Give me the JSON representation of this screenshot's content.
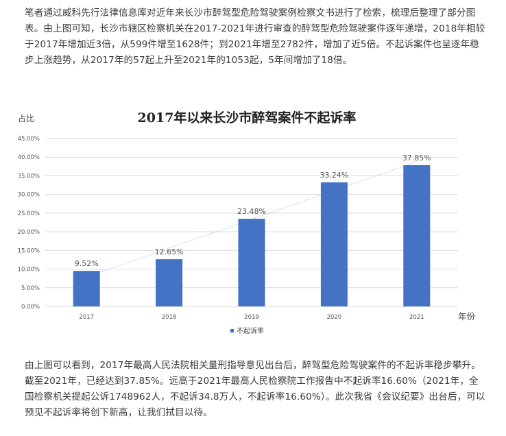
{
  "paragraphs": {
    "intro": "笔者通过威科先行法律信息库对近年来长沙市醉驾型危险驾驶案例检察文书进行了检索，梳理后整理了部分图表。由上图可知，长沙市辖区检察机关在2017-2021年进行审查的醉驾型危险驾驶案件逐年递增，2018年相较于2017年增加近3倍，从599件增至1628件；到2021年增至2782件，增加了近5倍。不起诉案件也呈逐年稳步上涨趋势，从2017年的57起上升至2021年的1053起，5年间增加了18倍。",
    "conclusion": "由上图可以看到，2017年最高人民法院相关量刑指导意见出台后，醉驾型危险驾驶案件的不起诉率稳步攀升。截至2021年，已经达到37.85%。远高于2021年最高人民检察院工作报告中不起诉率16.60%（2021年，全国检察机关提起公诉1748962人，不起诉34.8万人，不起诉率16.60%）。此次我省《会议纪要》出台后，可以预见不起诉率将创下新高，让我们拭目以待。"
  },
  "chart_data": {
    "type": "bar",
    "title": "2017年以来长沙市醉驾案件不起诉率",
    "ylabel": "占比",
    "xlabel": "年份",
    "categories": [
      "2017",
      "2018",
      "2019",
      "2020",
      "2021"
    ],
    "series": [
      {
        "name": "不起诉率",
        "values": [
          9.52,
          12.65,
          23.48,
          33.24,
          37.85
        ],
        "labels": [
          "9.52%",
          "12.65%",
          "23.48%",
          "33.24%",
          "37.85%"
        ]
      }
    ],
    "ylim": [
      0,
      45
    ],
    "yticks": [
      "0.00%",
      "5.00%",
      "10.00%",
      "15.00%",
      "20.00%",
      "25.00%",
      "30.00%",
      "35.00%",
      "40.00%",
      "45.00%"
    ],
    "trendline": "linear",
    "grid": true,
    "legend": "bottom",
    "colors": {
      "bar": "#4472C4",
      "trend": "#A9C1E8",
      "grid": "#D9D9D9"
    }
  }
}
